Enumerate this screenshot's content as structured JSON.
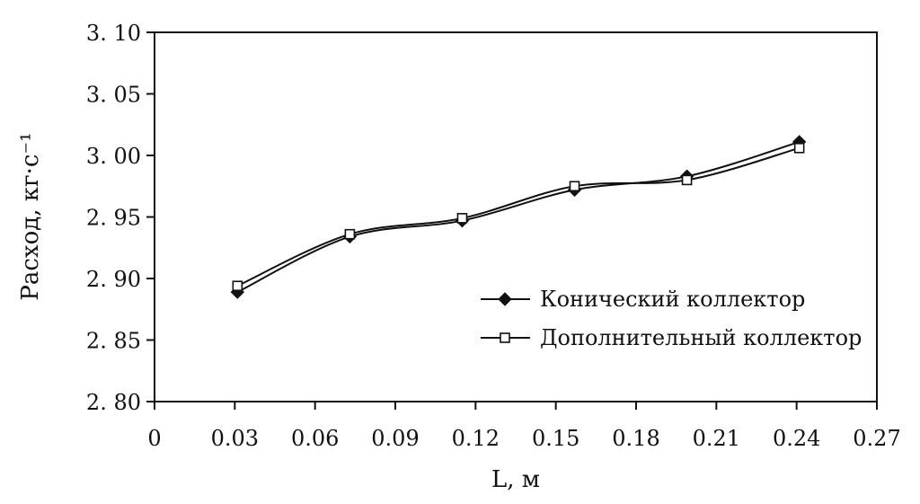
{
  "chart_data": {
    "type": "line",
    "xlabel": "L, м",
    "ylabel": "Расход, кг·с⁻¹",
    "xlim": [
      0,
      0.27
    ],
    "ylim": [
      2.8,
      3.1
    ],
    "x_ticks": [
      "0",
      "0.03",
      "0.06",
      "0.09",
      "0.12",
      "0.15",
      "0.18",
      "0.21",
      "0.24",
      "0.27"
    ],
    "y_ticks": [
      "2.80",
      "2.85",
      "2.90",
      "2.95",
      "3.00",
      "3.05",
      "3.10"
    ],
    "grid": false,
    "legend_position": "bottom-right",
    "series": [
      {
        "name": "Конический коллектор",
        "marker": "filled-diamond",
        "x": [
          0.031,
          0.073,
          0.115,
          0.157,
          0.199,
          0.241
        ],
        "y": [
          2.889,
          2.934,
          2.947,
          2.972,
          2.983,
          3.011
        ]
      },
      {
        "name": "Дополнительный коллектор",
        "marker": "open-square",
        "x": [
          0.031,
          0.073,
          0.115,
          0.157,
          0.199,
          0.241
        ],
        "y": [
          2.894,
          2.936,
          2.949,
          2.975,
          2.98,
          3.006
        ]
      }
    ]
  }
}
